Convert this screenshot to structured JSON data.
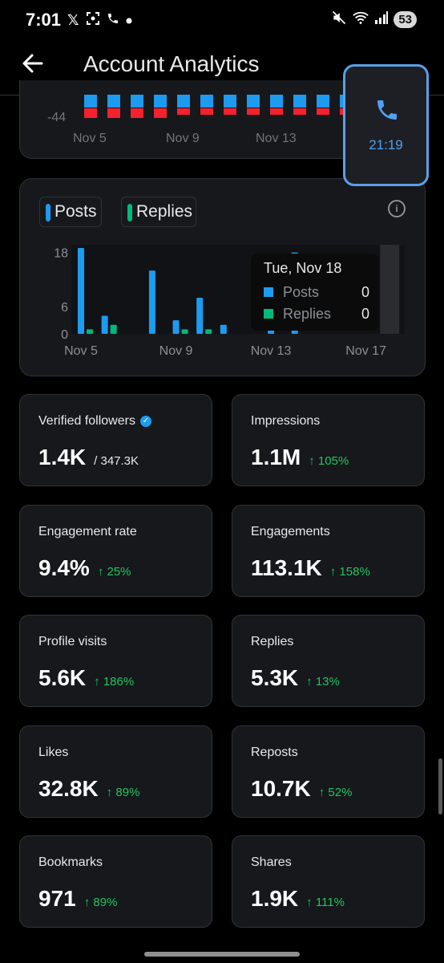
{
  "status_bar": {
    "time": "7:01",
    "icons_left": [
      "x-logo-icon",
      "screenshot-icon",
      "phone-icon",
      "dot-icon"
    ],
    "icons_right": [
      "mute-icon",
      "wifi-icon",
      "signal-icon"
    ],
    "battery": "53"
  },
  "header": {
    "title": "Account Analytics",
    "back_icon": "arrow-left-icon"
  },
  "top_chart": {
    "y_label": "-44",
    "x_labels": [
      "Nov 5",
      "Nov 9",
      "Nov 13"
    ]
  },
  "call_overlay": {
    "icon": "phone-icon",
    "timer": "21:19",
    "accent": "#5aa0e6"
  },
  "chart_data": {
    "type": "bar",
    "categories": [
      "Nov 5",
      "Nov 6",
      "Nov 7",
      "Nov 8",
      "Nov 9",
      "Nov 10",
      "Nov 11",
      "Nov 12",
      "Nov 13",
      "Nov 14",
      "Nov 15",
      "Nov 16",
      "Nov 17",
      "Nov 18"
    ],
    "series": [
      {
        "name": "Posts",
        "color": "#1d9bf0",
        "values": [
          19,
          4,
          0,
          14,
          3,
          8,
          2,
          0,
          5,
          18,
          0,
          0,
          0,
          0
        ]
      },
      {
        "name": "Replies",
        "color": "#00ba7c",
        "values": [
          1,
          2,
          0,
          0,
          1,
          1,
          0,
          0,
          0,
          0,
          0,
          0,
          0,
          0
        ]
      }
    ],
    "y_ticks": [
      "18",
      "6",
      "0"
    ],
    "x_tick_labels": [
      "Nov 5",
      "Nov 9",
      "Nov 13",
      "Nov 17"
    ],
    "ylim": [
      0,
      19
    ],
    "tooltip": {
      "title": "Tue, Nov 18",
      "rows": [
        {
          "label": "Posts",
          "value": "0"
        },
        {
          "label": "Replies",
          "value": "0"
        }
      ]
    },
    "info_icon": "info-icon"
  },
  "metrics": [
    {
      "label": "Verified followers",
      "value": "1.4K",
      "sub": "/ 347.3K",
      "verified": true
    },
    {
      "label": "Impressions",
      "value": "1.1M",
      "delta": "↑ 105%"
    },
    {
      "label": "Engagement rate",
      "value": "9.4%",
      "delta": "↑ 25%"
    },
    {
      "label": "Engagements",
      "value": "113.1K",
      "delta": "↑ 158%"
    },
    {
      "label": "Profile visits",
      "value": "5.6K",
      "delta": "↑ 186%"
    },
    {
      "label": "Replies",
      "value": "5.3K",
      "delta": "↑ 13%"
    },
    {
      "label": "Likes",
      "value": "32.8K",
      "delta": "↑ 89%"
    },
    {
      "label": "Reposts",
      "value": "10.7K",
      "delta": "↑ 52%"
    },
    {
      "label": "Bookmarks",
      "value": "971",
      "delta": "↑ 89%"
    },
    {
      "label": "Shares",
      "value": "1.9K",
      "delta": "↑ 111%"
    }
  ],
  "colors": {
    "background": "#000000",
    "card": "#16181c",
    "border": "#2f3336",
    "positive": "#22c55e",
    "posts": "#1d9bf0",
    "replies": "#00ba7c",
    "negative": "#f4212e"
  }
}
